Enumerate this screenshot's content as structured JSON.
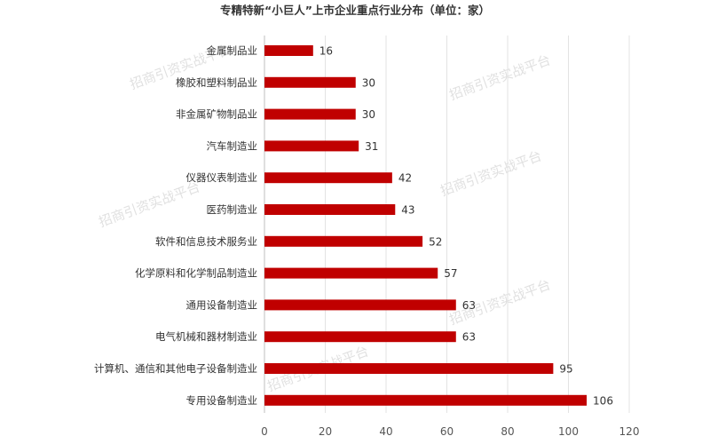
{
  "chart_data": {
    "type": "bar",
    "orientation": "horizontal",
    "title": "专精特新“小巨人”上市企业重点行业分布（单位：家）",
    "categories": [
      "金属制品业",
      "橡胶和塑料制品业",
      "非金属矿物制品业",
      "汽车制造业",
      "仪器仪表制造业",
      "医药制造业",
      "软件和信息技术服务业",
      "化学原料和化学制品制造业",
      "通用设备制造业",
      "电气机械和器材制造业",
      "计算机、通信和其他电子设备制造业",
      "专用设备制造业"
    ],
    "values": [
      16,
      30,
      30,
      31,
      42,
      43,
      52,
      57,
      63,
      63,
      95,
      106
    ],
    "xlim": [
      0,
      120
    ],
    "xticks": [
      0,
      20,
      40,
      60,
      80,
      100,
      120
    ],
    "grid": "vertical",
    "bar_color": "#c00000",
    "watermark": "招商引资实战平台"
  }
}
